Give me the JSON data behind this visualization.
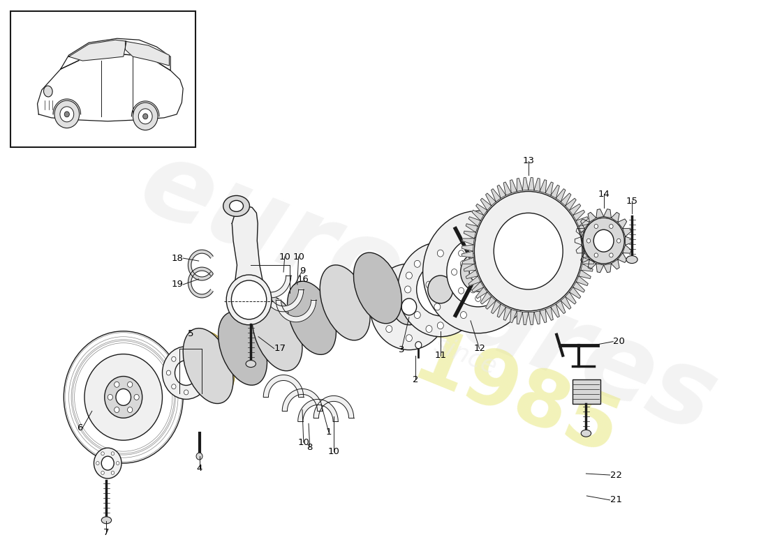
{
  "background_color": "#ffffff",
  "line_color": "#1a1a1a",
  "fill_light": "#f0f0f0",
  "fill_gray": "#d8d8d8",
  "fill_mid": "#c0c0c0",
  "fill_dark": "#a0a0a0",
  "fill_yellow": "#e8d080",
  "watermark_color": "#ececec",
  "watermark_alpha": 0.7,
  "fig_w": 11.0,
  "fig_h": 8.0
}
